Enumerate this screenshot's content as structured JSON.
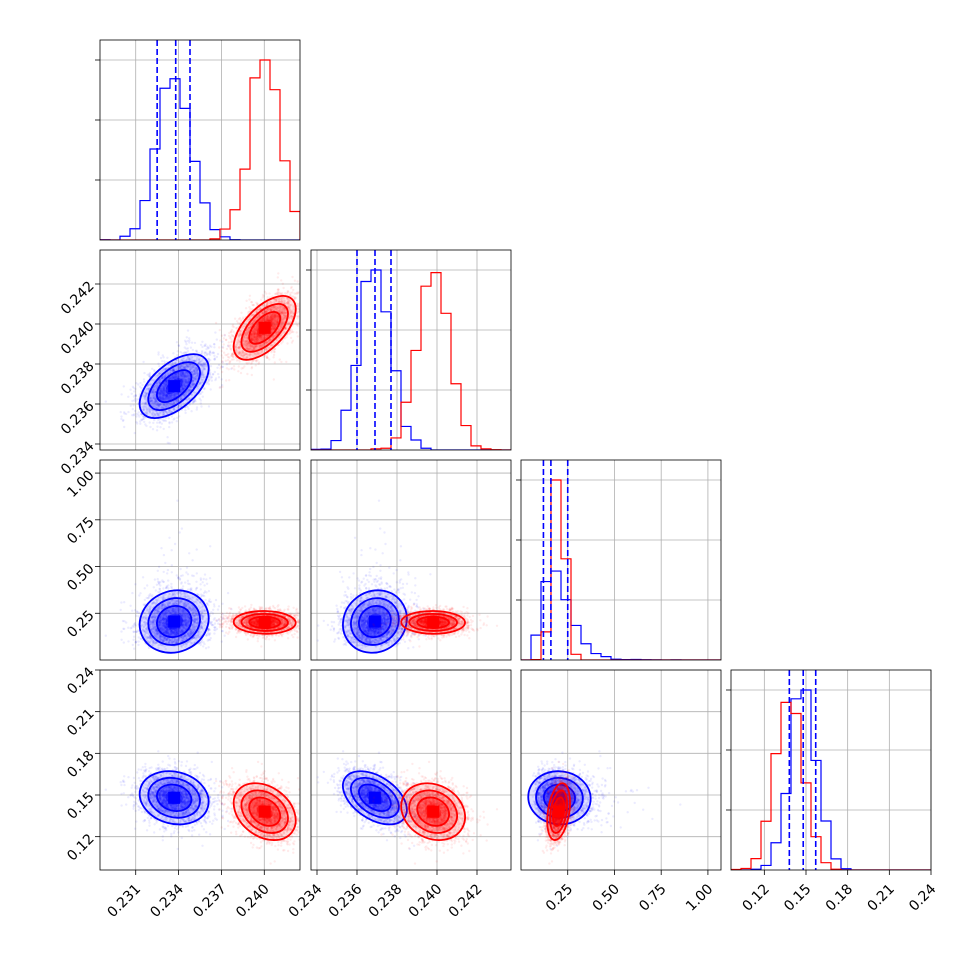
{
  "chart_data": {
    "type": "corner",
    "title": "",
    "grid": true,
    "colors": {
      "blue": "#0000ff",
      "red": "#ff0000"
    },
    "series": [
      {
        "color": "#0000ff",
        "mean": [
          0.2337,
          0.2369,
          0.19,
          0.148
        ],
        "sd": [
          0.0012,
          0.0008,
          0.075,
          0.0095
        ],
        "corr": {
          "0-1": 0.55,
          "0-2": 0.1,
          "0-3": -0.15,
          "1-2": 0.1,
          "1-3": -0.45,
          "2-3": 0.0
        }
      },
      {
        "color": "#ff0000",
        "mean": [
          0.24,
          0.2398,
          0.2,
          0.138
        ],
        "sd": [
          0.0011,
          0.0008,
          0.03,
          0.01
        ],
        "corr": {
          "0-1": 0.6,
          "0-2": 0.0,
          "0-3": -0.3,
          "1-2": 0.0,
          "1-3": -0.2,
          "2-3": 0.3
        }
      }
    ],
    "quantile_lines": [
      [
        0.2325,
        0.2338,
        0.2348
      ],
      [
        0.236,
        0.2369,
        0.2377
      ],
      [
        0.12,
        0.16,
        0.25
      ],
      [
        0.138,
        0.148,
        0.157
      ]
    ],
    "ranges": [
      [
        0.2285,
        0.2425
      ],
      [
        0.2337,
        0.2437
      ],
      [
        0.0,
        1.07
      ],
      [
        0.096,
        0.24
      ]
    ],
    "x_tick_labels": [
      [
        "0.231",
        "0.234",
        "0.237",
        "0.240"
      ],
      [
        "0.234",
        "0.236",
        "0.238",
        "0.240",
        "0.242"
      ],
      [
        "0.25",
        "0.50",
        "0.75",
        "1.00"
      ],
      [
        "0.12",
        "0.15",
        "0.18",
        "0.21",
        "0.24"
      ]
    ],
    "y_tick_labels": [
      [],
      [
        "0.234",
        "0.236",
        "0.238",
        "0.240",
        "0.242"
      ],
      [
        "0.25",
        "0.50",
        "0.75",
        "1.00"
      ],
      [
        "0.12",
        "0.15",
        "0.18",
        "0.21",
        "0.24"
      ]
    ]
  }
}
